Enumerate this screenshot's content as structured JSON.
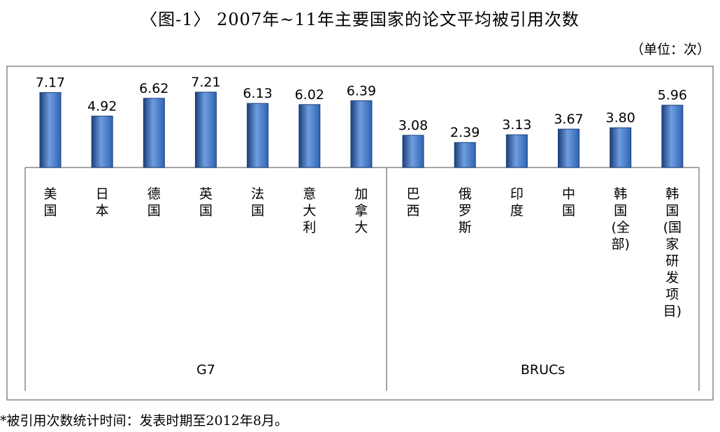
{
  "title": "〈图-1〉 2007年~11年主要国家的论文平均被引用次数",
  "unit_label": "（单位：次）",
  "footnote": "*被引用次数统计时间：发表时期至2012年8月。",
  "colors": {
    "bar": "#2f64b3",
    "bar_dark": "#1b3f7a",
    "bar_light": "#6f9de0",
    "frame": "#888888"
  },
  "chart_data": {
    "type": "bar",
    "categories": [
      "美国",
      "日本",
      "德国",
      "英国",
      "法国",
      "意大利",
      "加拿大",
      "巴西",
      "俄罗斯",
      "印度",
      "中国",
      "韩国(全部)",
      "韩国(国家研发项目)"
    ],
    "values": [
      7.17,
      4.92,
      6.62,
      7.21,
      6.13,
      6.02,
      6.39,
      3.08,
      2.39,
      3.13,
      3.67,
      3.8,
      5.96
    ],
    "value_labels": [
      "7.17",
      "4.92",
      "6.62",
      "7.21",
      "6.13",
      "6.02",
      "6.39",
      "3.08",
      "2.39",
      "3.13",
      "3.67",
      "3.80",
      "5.96"
    ],
    "category_lines": [
      [
        "美",
        "国"
      ],
      [
        "日",
        "本"
      ],
      [
        "德",
        "国"
      ],
      [
        "英",
        "国"
      ],
      [
        "法",
        "国"
      ],
      [
        "意",
        "大",
        "利"
      ],
      [
        "加",
        "拿",
        "大"
      ],
      [
        "巴",
        "西"
      ],
      [
        "俄",
        "罗",
        "斯"
      ],
      [
        "印",
        "度"
      ],
      [
        "中",
        "国"
      ],
      [
        "韩",
        "国",
        "(全",
        "部)"
      ],
      [
        "韩",
        "国",
        "(国",
        "家",
        "研",
        "发",
        "项",
        "目)"
      ]
    ],
    "groups": [
      {
        "name": "G7",
        "count": 7
      },
      {
        "name": "BRUCs",
        "count": 6
      }
    ],
    "ylim": [
      0,
      7.21
    ]
  }
}
